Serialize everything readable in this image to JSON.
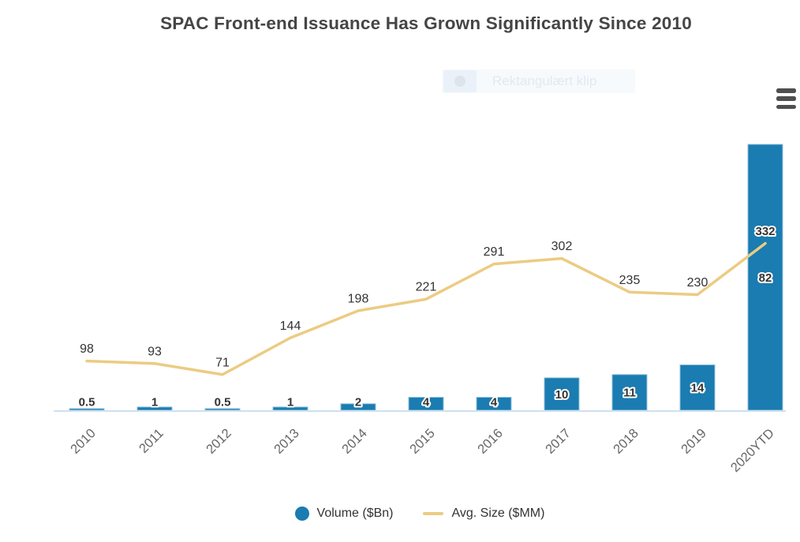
{
  "title": "SPAC Front-end Issuance Has Grown Significantly Since 2010",
  "overlay": {
    "label": "Rektangulært klip"
  },
  "menu": {
    "tooltip": "chart-context-menu"
  },
  "legend": {
    "items": [
      {
        "label": "Volume ($Bn)",
        "swatch": "circle",
        "color": "#1A7CB0"
      },
      {
        "label": "Avg. Size ($MM)",
        "swatch": "line",
        "color": "#ECCB82"
      }
    ]
  },
  "colors": {
    "bar_fill": "#1A7CB0",
    "bar_border": "#8FC0DB",
    "line": "#ECCB82",
    "axis_line": "#CFE0EF",
    "data_label": "#333333",
    "x_label": "#666666",
    "title_text": "#454545"
  },
  "chart_data": {
    "type": "bar",
    "combo": "column + line",
    "title": "SPAC Front-end Issuance Has Grown Significantly Since 2010",
    "categories": [
      "2010",
      "2011",
      "2012",
      "2013",
      "2014",
      "2015",
      "2016",
      "2017",
      "2018",
      "2019",
      "2020YTD"
    ],
    "series": [
      {
        "name": "Volume ($Bn)",
        "type": "column",
        "color": "#1A7CB0",
        "values": [
          0.5,
          1,
          0.5,
          1,
          2,
          4,
          4,
          10,
          11,
          14,
          82
        ],
        "labels": [
          "0.5",
          "1",
          "0.5",
          "1",
          "2",
          "4",
          "4",
          "10",
          "11",
          "14",
          "82"
        ]
      },
      {
        "name": "Avg. Size ($MM)",
        "type": "line",
        "color": "#ECCB82",
        "values": [
          98,
          93,
          71,
          144,
          198,
          221,
          291,
          302,
          235,
          230,
          332
        ],
        "labels": [
          "98",
          "93",
          "71",
          "144",
          "198",
          "221",
          "291",
          "302",
          "235",
          "230",
          "332"
        ]
      }
    ],
    "xlabel": "",
    "ylabel": "",
    "x_label_rotation": -45,
    "y_axes_hidden": true,
    "grid": false,
    "data_labels": true,
    "legend_position": "bottom"
  }
}
